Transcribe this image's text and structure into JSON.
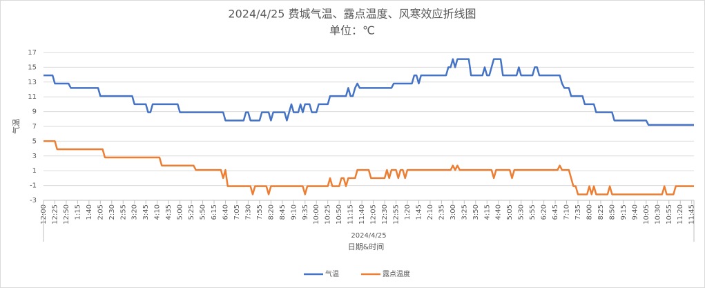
{
  "chart_data": {
    "type": "line",
    "title": "2024/4/25 费城气温、露点温度、风寒效应折线图",
    "subtitle": "单位：℃",
    "x_group_label": "2024/4/25",
    "xlabel": "日期&时间",
    "ylabel": "气温",
    "ylim": [
      -3,
      17
    ],
    "yticks": [
      -3,
      -1,
      1,
      3,
      5,
      7,
      9,
      11,
      13,
      15,
      17
    ],
    "grid": true,
    "legend": "bottom",
    "categories": [
      "12:00",
      null,
      null,
      null,
      null,
      "12:25",
      null,
      null,
      null,
      null,
      "12:50",
      null,
      null,
      null,
      null,
      "1:15",
      null,
      null,
      null,
      null,
      "1:40",
      null,
      null,
      null,
      null,
      "2:05",
      null,
      null,
      null,
      null,
      "2:30",
      null,
      null,
      null,
      null,
      "2:55",
      null,
      null,
      null,
      null,
      "3:20",
      null,
      null,
      null,
      null,
      "3:45",
      null,
      null,
      null,
      null,
      "4:10",
      null,
      null,
      null,
      null,
      "4:35",
      null,
      null,
      null,
      null,
      "5:00",
      null,
      null,
      null,
      null,
      "5:25",
      null,
      null,
      null,
      null,
      "5:50",
      null,
      null,
      null,
      null,
      "6:15",
      null,
      null,
      null,
      null,
      "6:40",
      null,
      null,
      null,
      null,
      "7:05",
      null,
      null,
      null,
      null,
      "7:30",
      null,
      null,
      null,
      null,
      "7:55",
      null,
      null,
      null,
      null,
      "8:20",
      null,
      null,
      null,
      null,
      "8:45",
      null,
      null,
      null,
      null,
      "9:10",
      null,
      null,
      null,
      null,
      "9:35",
      null,
      null,
      null,
      null,
      "10:00",
      null,
      null,
      null,
      null,
      "10:25",
      null,
      null,
      null,
      null,
      "10:50",
      null,
      null,
      null,
      null,
      "11:15",
      null,
      null,
      null,
      null,
      "11:40",
      null,
      null,
      null,
      null,
      "12:05",
      null,
      null,
      null,
      null,
      "12:30",
      null,
      null,
      null,
      null,
      "12:55",
      null,
      null,
      null,
      null,
      "1:20",
      null,
      null,
      null,
      null,
      "1:45",
      null,
      null,
      null,
      null,
      "2:10",
      null,
      null,
      null,
      null,
      "2:35",
      null,
      null,
      null,
      null,
      "3:00",
      null,
      null,
      null,
      null,
      "3:25",
      null,
      null,
      null,
      null,
      "3:50",
      null,
      null,
      null,
      null,
      "4:15",
      null,
      null,
      null,
      null,
      "4:40",
      null,
      null,
      null,
      null,
      "5:05",
      null,
      null,
      null,
      null,
      "5:30",
      null,
      null,
      null,
      null,
      "5:55",
      null,
      null,
      null,
      null,
      "6:20",
      null,
      null,
      null,
      null,
      "6:45",
      null,
      null,
      null,
      null,
      "7:10",
      null,
      null,
      null,
      null,
      "7:35",
      null,
      null,
      null,
      null,
      "8:00",
      null,
      null,
      null,
      null,
      "8:25",
      null,
      null,
      null,
      null,
      "8:50",
      null,
      null,
      null,
      null,
      "9:15",
      null,
      null,
      null,
      null,
      "9:40",
      null,
      null,
      null,
      null,
      "10:05",
      null,
      null,
      null,
      null,
      "10:30",
      null,
      null,
      null,
      null,
      "10:55",
      null,
      null,
      null,
      null,
      "11:20",
      null,
      null,
      null,
      null,
      "11:45",
      null
    ],
    "series": [
      {
        "name": "气温",
        "color": "#4472c4",
        "values": [
          13.9,
          13.9,
          13.9,
          13.9,
          13.9,
          12.8,
          12.8,
          12.8,
          12.8,
          12.8,
          12.8,
          12.8,
          12.2,
          12.2,
          12.2,
          12.2,
          12.2,
          12.2,
          12.2,
          12.2,
          12.2,
          12.2,
          12.2,
          12.2,
          12.2,
          11.1,
          11.1,
          11.1,
          11.1,
          11.1,
          11.1,
          11.1,
          11.1,
          11.1,
          11.1,
          11.1,
          11.1,
          11.1,
          11.1,
          11.1,
          10,
          10,
          10,
          10,
          10,
          10,
          8.9,
          8.9,
          10,
          10,
          10,
          10,
          10,
          10,
          10,
          10,
          10,
          10,
          10,
          10,
          8.9,
          8.9,
          8.9,
          8.9,
          8.9,
          8.9,
          8.9,
          8.9,
          8.9,
          8.9,
          8.9,
          8.9,
          8.9,
          8.9,
          8.9,
          8.9,
          8.9,
          8.9,
          8.9,
          8.9,
          7.8,
          7.8,
          7.8,
          7.8,
          7.8,
          7.8,
          7.8,
          7.8,
          7.8,
          8.9,
          8.9,
          7.8,
          7.8,
          7.8,
          7.8,
          7.8,
          8.9,
          8.9,
          8.9,
          8.9,
          7.8,
          8.9,
          8.9,
          8.9,
          8.9,
          8.9,
          8.9,
          7.8,
          8.9,
          10,
          8.9,
          8.9,
          8.9,
          10,
          8.9,
          10,
          10,
          10,
          8.9,
          8.9,
          8.9,
          10,
          10,
          10,
          10,
          10,
          11.1,
          11.1,
          11.1,
          11.1,
          11.1,
          11.1,
          11.1,
          11.1,
          12.2,
          11.1,
          11.1,
          12.2,
          12.8,
          12.2,
          12.2,
          12.2,
          12.2,
          12.2,
          12.2,
          12.2,
          12.2,
          12.2,
          12.2,
          12.2,
          12.2,
          12.2,
          12.2,
          12.2,
          12.8,
          12.8,
          12.8,
          12.8,
          12.8,
          12.8,
          12.8,
          12.8,
          12.8,
          13.9,
          13.9,
          12.8,
          13.9,
          13.9,
          13.9,
          13.9,
          13.9,
          13.9,
          13.9,
          13.9,
          13.9,
          13.9,
          13.9,
          13.9,
          15,
          15,
          16.1,
          15,
          16.1,
          16.1,
          16.1,
          16.1,
          16.1,
          16.1,
          13.9,
          13.9,
          13.9,
          13.9,
          13.9,
          13.9,
          15,
          13.9,
          13.9,
          15,
          16.1,
          16.1,
          16.1,
          16.1,
          13.9,
          13.9,
          13.9,
          13.9,
          13.9,
          13.9,
          13.9,
          15,
          13.9,
          13.9,
          13.9,
          13.9,
          13.9,
          13.9,
          15,
          15,
          13.9,
          13.9,
          13.9,
          13.9,
          13.9,
          13.9,
          13.9,
          13.9,
          13.9,
          13.9,
          12.8,
          12.2,
          12.2,
          12.2,
          11.1,
          11.1,
          11.1,
          11.1,
          11.1,
          11.1,
          10,
          10,
          10,
          10,
          10,
          8.9,
          8.9,
          8.9,
          8.9,
          8.9,
          8.9,
          8.9,
          8.9,
          7.8,
          7.8,
          7.8,
          7.8,
          7.8,
          7.8,
          7.8,
          7.8,
          7.8,
          7.8,
          7.8,
          7.8,
          7.8,
          7.8,
          7.8,
          7.2,
          7.2,
          7.2,
          7.2,
          7.2,
          7.2,
          7.2,
          7.2,
          7.2,
          7.2,
          7.2,
          7.2,
          7.2,
          7.2,
          7.2,
          7.2,
          7.2,
          7.2,
          7.2,
          7.2,
          7.2
        ]
      },
      {
        "name": "露点温度",
        "color": "#ed7d31",
        "values": [
          5,
          5,
          5,
          5,
          5,
          5,
          3.9,
          3.9,
          3.9,
          3.9,
          3.9,
          3.9,
          3.9,
          3.9,
          3.9,
          3.9,
          3.9,
          3.9,
          3.9,
          3.9,
          3.9,
          3.9,
          3.9,
          3.9,
          3.9,
          3.9,
          3.9,
          2.8,
          2.8,
          2.8,
          2.8,
          2.8,
          2.8,
          2.8,
          2.8,
          2.8,
          2.8,
          2.8,
          2.8,
          2.8,
          2.8,
          2.8,
          2.8,
          2.8,
          2.8,
          2.8,
          2.8,
          2.8,
          2.8,
          2.8,
          2.8,
          2.8,
          1.7,
          1.7,
          1.7,
          1.7,
          1.7,
          1.7,
          1.7,
          1.7,
          1.7,
          1.7,
          1.7,
          1.7,
          1.7,
          1.7,
          1.7,
          1.1,
          1.1,
          1.1,
          1.1,
          1.1,
          1.1,
          1.1,
          1.1,
          1.1,
          1.1,
          1.1,
          1.1,
          0,
          1.1,
          -1.1,
          -1.1,
          -1.1,
          -1.1,
          -1.1,
          -1.1,
          -1.1,
          -1.1,
          -1.1,
          -1.1,
          -1.1,
          -2.2,
          -1.1,
          -1.1,
          -1.1,
          -1.1,
          -1.1,
          -1.1,
          -2.2,
          -1.1,
          -1.1,
          -1.1,
          -1.1,
          -1.1,
          -1.1,
          -1.1,
          -1.1,
          -1.1,
          -1.1,
          -1.1,
          -1.1,
          -1.1,
          -1.1,
          -1.1,
          -2.2,
          -1.1,
          -1.1,
          -1.1,
          -1.1,
          -1.1,
          -1.1,
          -1.1,
          -1.1,
          -1.1,
          -1.1,
          0,
          -1.1,
          -1.1,
          -1.1,
          -1.1,
          0,
          0,
          -1.1,
          0,
          0,
          0,
          0,
          1.1,
          1.1,
          1.1,
          1.1,
          1.1,
          1.1,
          0,
          0,
          0,
          0,
          0,
          0,
          0,
          1.1,
          0,
          1.1,
          1.1,
          1.1,
          0,
          1.1,
          1.1,
          0,
          1.1,
          1.1,
          1.1,
          1.1,
          1.1,
          1.1,
          1.1,
          1.1,
          1.1,
          1.1,
          1.1,
          1.1,
          1.1,
          1.1,
          1.1,
          1.1,
          1.1,
          1.1,
          1.1,
          1.1,
          1.7,
          1.1,
          1.7,
          1.1,
          1.1,
          1.1,
          1.1,
          1.1,
          1.1,
          1.1,
          1.1,
          1.1,
          1.1,
          1.1,
          1.1,
          1.1,
          1.1,
          1.1,
          0,
          1.1,
          1.1,
          1.1,
          1.1,
          1.1,
          1.1,
          1.1,
          0,
          1.1,
          1.1,
          1.1,
          1.1,
          1.1,
          1.1,
          1.1,
          1.1,
          1.1,
          1.1,
          1.1,
          1.1,
          1.1,
          1.1,
          1.1,
          1.1,
          1.1,
          1.1,
          1.1,
          1.1,
          1.7,
          1.1,
          1.1,
          1.1,
          1.1,
          0,
          -1.1,
          -1.1,
          -2.2,
          -2.2,
          -2.2,
          -2.2,
          -2.2,
          -1.1,
          -2.2,
          -1.1,
          -2.2,
          -2.2,
          -2.2,
          -2.2,
          -2.2,
          -2.2,
          -1.1,
          -2.2,
          -2.2,
          -2.2,
          -2.2,
          -2.2,
          -2.2,
          -2.2,
          -2.2,
          -2.2,
          -2.2,
          -2.2,
          -2.2,
          -2.2,
          -2.2,
          -2.2,
          -2.2,
          -2.2,
          -2.2,
          -2.2,
          -2.2,
          -2.2,
          -2.2,
          -2.2,
          -1.1,
          -2.2,
          -2.2,
          -2.2,
          -2.2,
          -1.1,
          -1.1,
          -1.1,
          -1.1,
          -1.1,
          -1.1,
          -1.1,
          -1.1,
          -1.1
        ]
      }
    ]
  }
}
